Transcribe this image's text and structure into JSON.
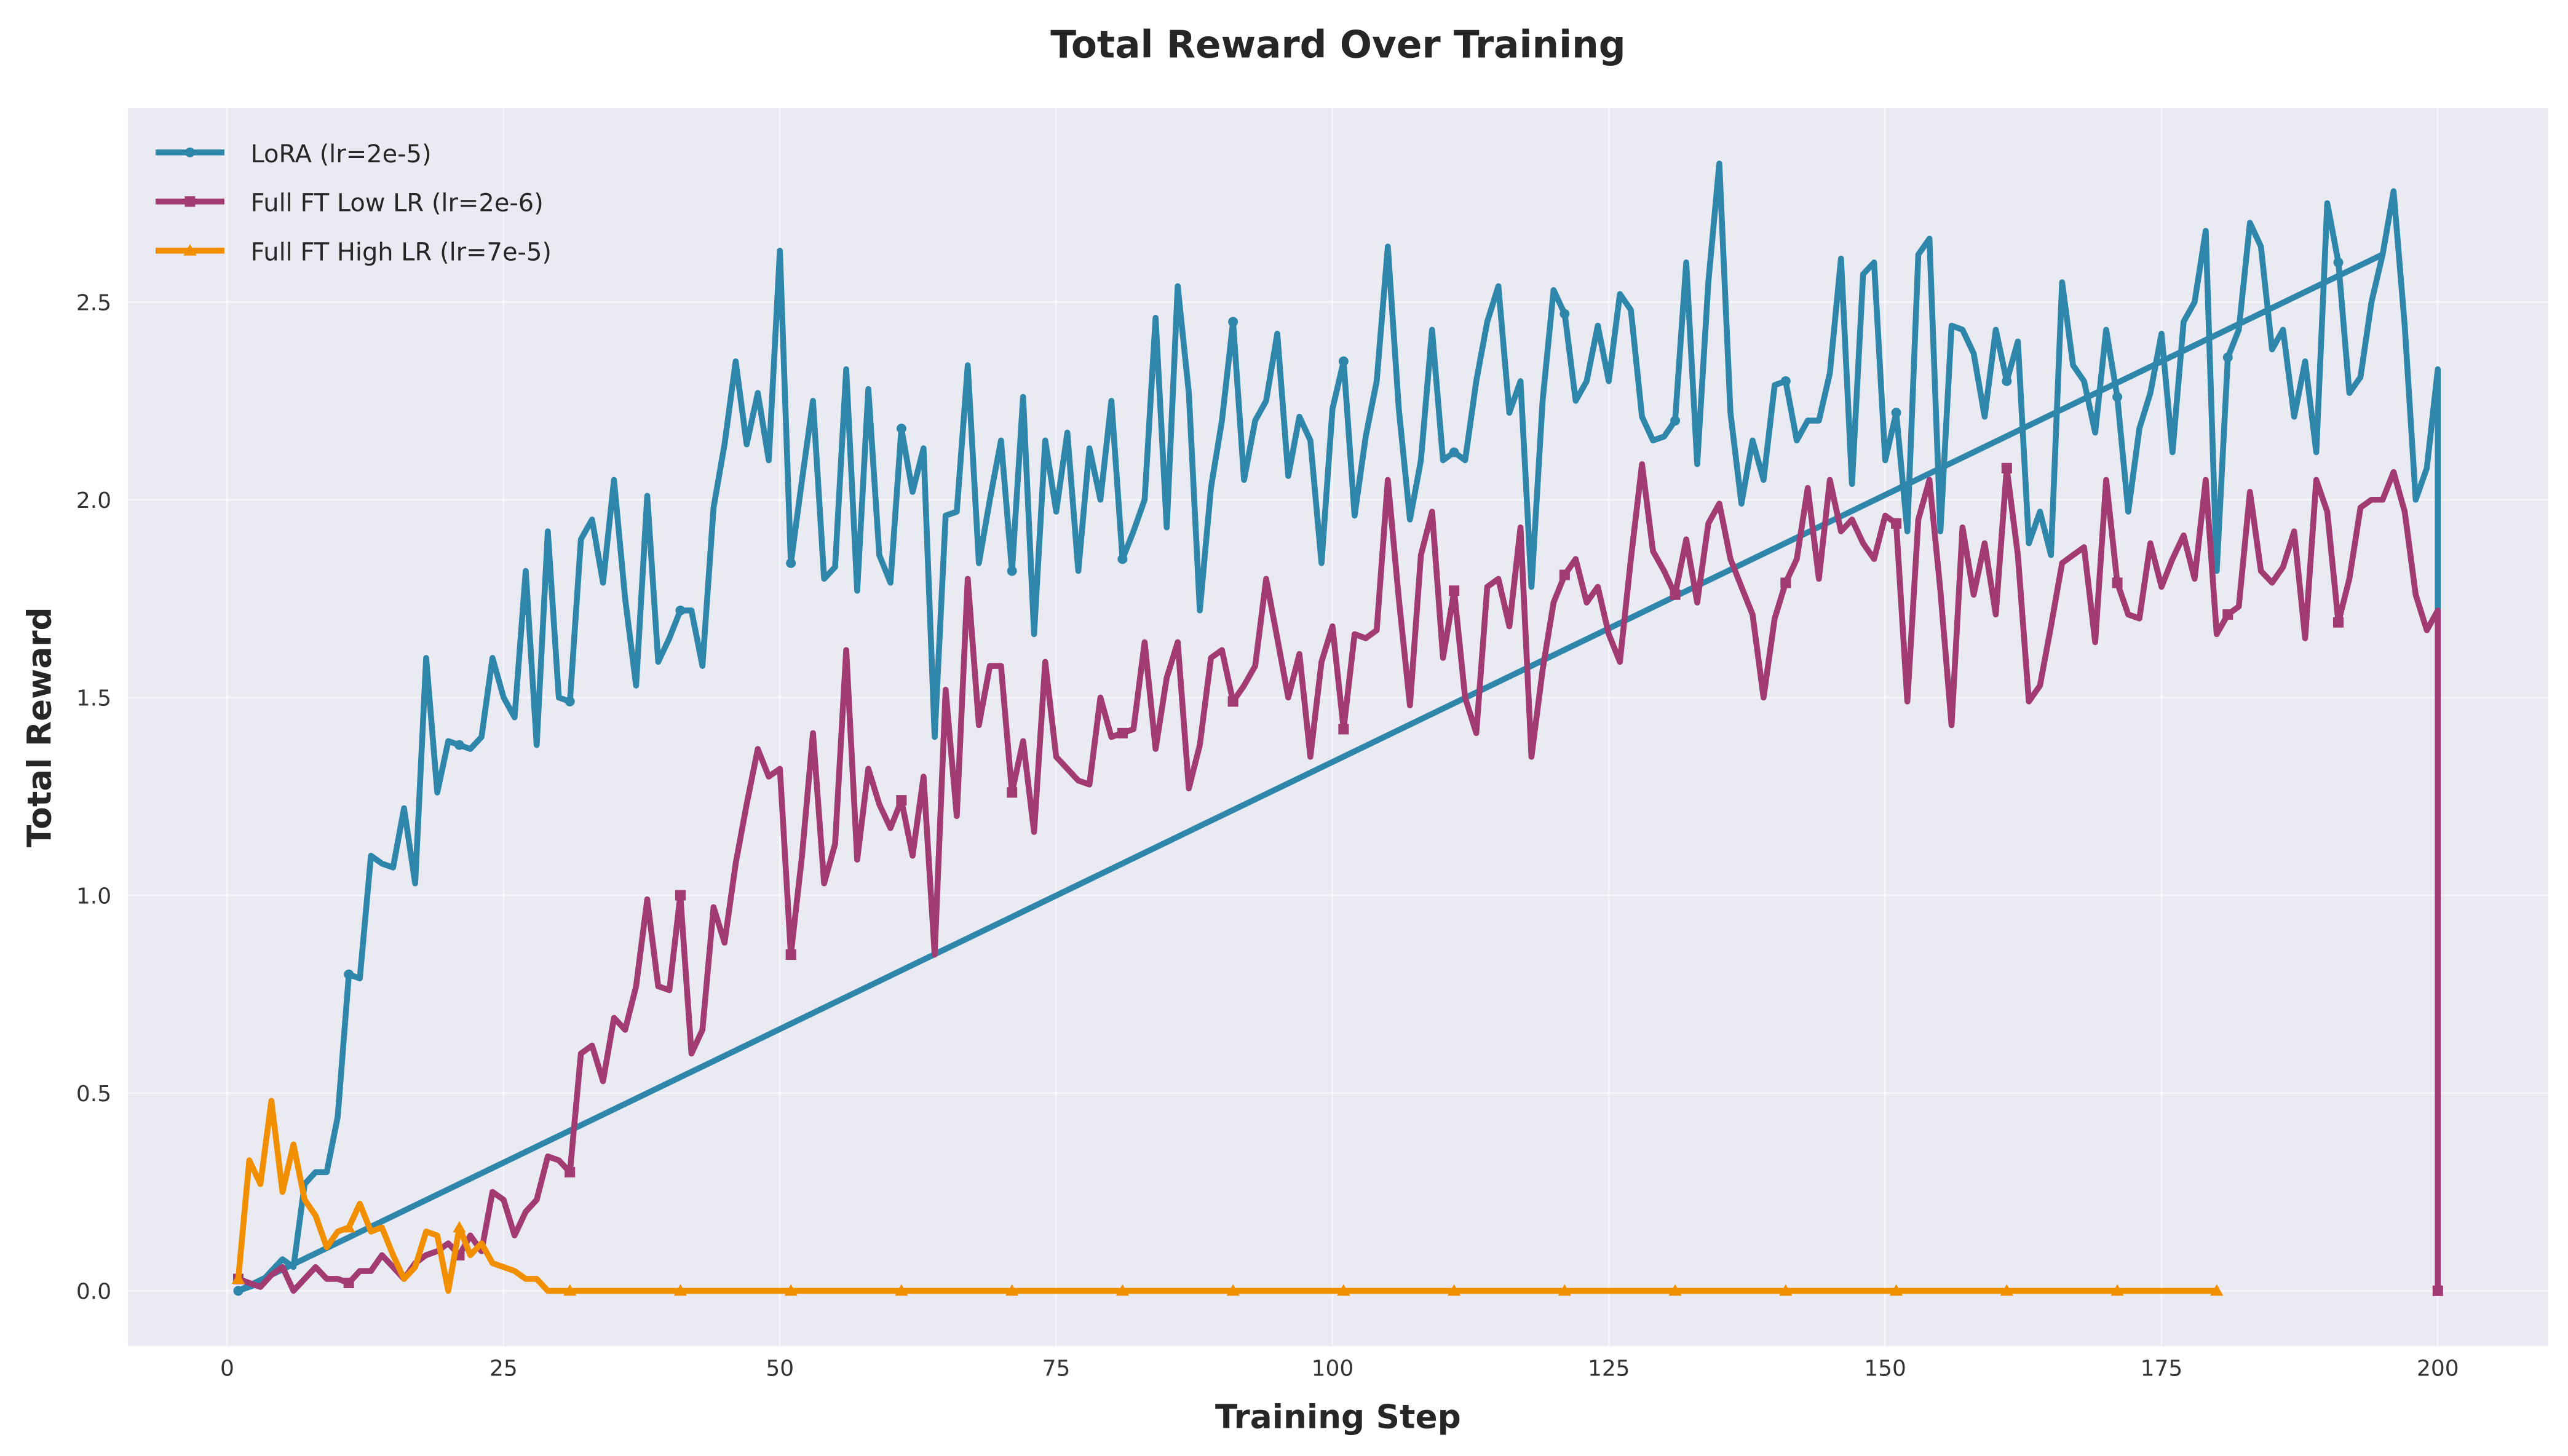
{
  "chart_data": {
    "type": "line",
    "title": "Total Reward Over Training",
    "xlabel": "Training Step",
    "ylabel": "Total Reward",
    "xlim": [
      -9,
      210
    ],
    "ylim": [
      -0.14,
      2.99
    ],
    "xticks": [
      0,
      25,
      50,
      75,
      100,
      125,
      150,
      175,
      200
    ],
    "yticks": [
      0.0,
      0.5,
      1.0,
      1.5,
      2.0,
      2.5
    ],
    "xtick_labels": [
      "0",
      "25",
      "50",
      "75",
      "100",
      "125",
      "150",
      "175",
      "200"
    ],
    "ytick_labels": [
      "0.0",
      "0.5",
      "1.0",
      "1.5",
      "2.0",
      "2.5"
    ],
    "grid": true,
    "legend_position": "top-left",
    "background": "#EAEAF2",
    "series": [
      {
        "name": "LoRA (lr=2e-5)",
        "color": "#2E86AB",
        "marker": "circle",
        "start_step": 1,
        "values": [
          0.0,
          0.01,
          0.02,
          0.05,
          0.08,
          0.06,
          0.27,
          0.3,
          0.3,
          0.44,
          0.8,
          0.79,
          1.1,
          1.08,
          1.07,
          1.22,
          1.03,
          1.6,
          1.26,
          1.39,
          1.38,
          1.37,
          1.4,
          1.6,
          1.5,
          1.45,
          1.82,
          1.38,
          1.92,
          1.5,
          1.49,
          1.9,
          1.95,
          1.79,
          2.05,
          1.75,
          1.53,
          2.01,
          1.59,
          1.65,
          1.72,
          1.72,
          1.58,
          1.98,
          2.14,
          2.35,
          2.14,
          2.27,
          2.1,
          2.63,
          1.84,
          2.05,
          2.25,
          1.8,
          1.83,
          2.33,
          1.77,
          2.28,
          1.86,
          1.79,
          2.18,
          2.02,
          2.13,
          1.4,
          1.96,
          1.97,
          2.34,
          1.84,
          2.0,
          2.15,
          1.82,
          2.26,
          1.66,
          2.15,
          1.97,
          2.17,
          1.82,
          2.13,
          2.0,
          2.25,
          1.85,
          1.92,
          2.0,
          2.46,
          1.93,
          2.54,
          2.27,
          1.72,
          2.03,
          2.2,
          2.45,
          2.05,
          2.2,
          2.25,
          2.42,
          2.06,
          2.21,
          2.15,
          1.84,
          2.23,
          2.35,
          1.96,
          2.16,
          2.3,
          2.64,
          2.23,
          1.95,
          2.1,
          2.43,
          2.1,
          2.12,
          2.1,
          2.3,
          2.45,
          2.54,
          2.22,
          2.3,
          1.78,
          2.25,
          2.53,
          2.47,
          2.25,
          2.3,
          2.44,
          2.3,
          2.52,
          2.48,
          2.21,
          2.15,
          2.16,
          2.2,
          2.6,
          2.09,
          2.55,
          2.85,
          2.22,
          1.99,
          2.15,
          2.05,
          2.29,
          2.3,
          2.15,
          2.2,
          2.2,
          2.32,
          2.61,
          2.04,
          2.57,
          2.6,
          2.1,
          2.22,
          1.92,
          2.62,
          2.66,
          1.92,
          2.44,
          2.43,
          2.37,
          2.21,
          2.43,
          2.3,
          2.4,
          1.89,
          1.97,
          1.86,
          2.55,
          2.34,
          2.3,
          2.17,
          2.43,
          2.26,
          1.97,
          2.18,
          2.27,
          2.42,
          2.12,
          2.45,
          2.5,
          2.68,
          1.82,
          2.36,
          2.43,
          2.7,
          2.64,
          2.38,
          2.43,
          2.21,
          2.35,
          2.12,
          2.75,
          2.6,
          2.27,
          2.31,
          2.5,
          2.62,
          2.78,
          2.44,
          2.0,
          2.08,
          2.33
        ],
        "final_point": [
          200,
          0.0
        ],
        "extra_segment": [
          [
            1,
            0.0
          ],
          [
            195,
            2.62
          ]
        ]
      },
      {
        "name": "Full FT Low LR (lr=2e-6)",
        "color": "#A23B72",
        "marker": "square",
        "start_step": 1,
        "values": [
          0.03,
          0.02,
          0.01,
          0.04,
          0.06,
          0.0,
          0.03,
          0.06,
          0.03,
          0.03,
          0.02,
          0.05,
          0.05,
          0.09,
          0.06,
          0.03,
          0.07,
          0.09,
          0.1,
          0.12,
          0.09,
          0.14,
          0.1,
          0.25,
          0.23,
          0.14,
          0.2,
          0.23,
          0.34,
          0.33,
          0.3,
          0.6,
          0.62,
          0.53,
          0.69,
          0.66,
          0.77,
          0.99,
          0.77,
          0.76,
          1.0,
          0.6,
          0.66,
          0.97,
          0.88,
          1.08,
          1.23,
          1.37,
          1.3,
          1.32,
          0.85,
          1.1,
          1.41,
          1.03,
          1.13,
          1.62,
          1.09,
          1.32,
          1.23,
          1.17,
          1.24,
          1.1,
          1.3,
          0.85,
          1.52,
          1.2,
          1.8,
          1.43,
          1.58,
          1.58,
          1.26,
          1.39,
          1.16,
          1.59,
          1.35,
          1.32,
          1.29,
          1.28,
          1.5,
          1.4,
          1.41,
          1.42,
          1.64,
          1.37,
          1.55,
          1.64,
          1.27,
          1.38,
          1.6,
          1.62,
          1.49,
          1.53,
          1.58,
          1.8,
          1.65,
          1.5,
          1.61,
          1.35,
          1.59,
          1.68,
          1.42,
          1.66,
          1.65,
          1.67,
          2.05,
          1.75,
          1.48,
          1.86,
          1.97,
          1.6,
          1.77,
          1.5,
          1.41,
          1.78,
          1.8,
          1.68,
          1.93,
          1.35,
          1.57,
          1.74,
          1.81,
          1.85,
          1.74,
          1.78,
          1.66,
          1.59,
          1.85,
          2.09,
          1.87,
          1.82,
          1.76,
          1.9,
          1.74,
          1.94,
          1.99,
          1.85,
          1.78,
          1.71,
          1.5,
          1.7,
          1.79,
          1.85,
          2.03,
          1.8,
          2.05,
          1.92,
          1.95,
          1.89,
          1.85,
          1.96,
          1.94,
          1.49,
          1.95,
          2.05,
          1.77,
          1.43,
          1.93,
          1.76,
          1.89,
          1.71,
          2.08,
          1.86,
          1.49,
          1.53,
          1.68,
          1.84,
          1.86,
          1.88,
          1.64,
          2.05,
          1.79,
          1.71,
          1.7,
          1.89,
          1.78,
          1.85,
          1.91,
          1.8,
          2.05,
          1.66,
          1.71,
          1.73,
          2.02,
          1.82,
          1.79,
          1.83,
          1.92,
          1.65,
          2.05,
          1.97,
          1.69,
          1.8,
          1.98,
          2.0,
          2.0,
          2.07,
          1.97,
          1.76,
          1.67,
          1.72
        ],
        "final_point": [
          200,
          0.0
        ]
      },
      {
        "name": "Full FT High LR (lr=7e-5)",
        "color": "#F18F01",
        "marker": "triangle",
        "start_step": 1,
        "values": [
          0.03,
          0.33,
          0.27,
          0.48,
          0.25,
          0.37,
          0.23,
          0.19,
          0.11,
          0.15,
          0.16,
          0.22,
          0.15,
          0.16,
          0.09,
          0.03,
          0.06,
          0.15,
          0.14,
          0.0,
          0.16,
          0.09,
          0.12,
          0.07,
          0.06,
          0.05,
          0.03,
          0.03,
          0.0,
          0,
          0,
          0,
          0,
          0,
          0,
          0,
          0,
          0,
          0,
          0,
          0,
          0,
          0,
          0,
          0,
          0,
          0,
          0,
          0,
          0,
          0,
          0,
          0,
          0,
          0,
          0,
          0,
          0,
          0,
          0,
          0,
          0,
          0,
          0,
          0,
          0,
          0,
          0,
          0,
          0,
          0,
          0,
          0,
          0,
          0,
          0,
          0,
          0,
          0,
          0,
          0,
          0,
          0,
          0,
          0,
          0,
          0,
          0,
          0,
          0,
          0,
          0,
          0,
          0,
          0,
          0,
          0,
          0,
          0,
          0,
          0,
          0,
          0,
          0,
          0,
          0,
          0,
          0,
          0,
          0,
          0,
          0,
          0,
          0,
          0,
          0,
          0,
          0,
          0,
          0,
          0,
          0,
          0,
          0,
          0,
          0,
          0,
          0,
          0,
          0,
          0,
          0,
          0,
          0,
          0,
          0,
          0,
          0,
          0,
          0,
          0,
          0,
          0,
          0,
          0,
          0,
          0,
          0,
          0,
          0,
          0,
          0,
          0,
          0,
          0,
          0,
          0,
          0,
          0,
          0,
          0,
          0,
          0,
          0,
          0,
          0,
          0,
          0,
          0,
          0,
          0,
          0,
          0,
          0,
          0,
          0,
          0,
          0,
          0,
          0
        ]
      }
    ]
  }
}
